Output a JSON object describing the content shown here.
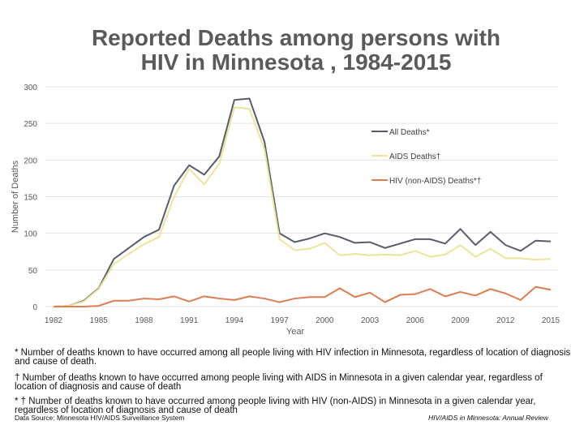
{
  "title_line1": "Reported Deaths among persons with",
  "title_line2": "HIV in Minnesota , 1984-2015",
  "chart_data": {
    "type": "line",
    "title": "Reported Deaths among persons with HIV in Minnesota , 1984-2015",
    "xlabel": "Year",
    "ylabel": "Number of Deaths",
    "ylim": [
      0,
      300
    ],
    "yticks": [
      0,
      50,
      100,
      150,
      200,
      250,
      300
    ],
    "xticks": [
      1982,
      1985,
      1988,
      1991,
      1994,
      1997,
      2000,
      2003,
      2006,
      2009,
      2012,
      2015
    ],
    "grid": "horizontal",
    "legend_position": "right",
    "x": [
      1982,
      1983,
      1984,
      1985,
      1986,
      1987,
      1988,
      1989,
      1990,
      1991,
      1992,
      1993,
      1994,
      1995,
      1996,
      1997,
      1998,
      1999,
      2000,
      2001,
      2002,
      2003,
      2004,
      2005,
      2006,
      2007,
      2008,
      2009,
      2010,
      2011,
      2012,
      2013,
      2014,
      2015
    ],
    "series": [
      {
        "name": "All Deaths*",
        "color": "#595d6b",
        "values": [
          0,
          1,
          8,
          25,
          65,
          80,
          95,
          105,
          165,
          193,
          180,
          205,
          282,
          284,
          225,
          100,
          88,
          93,
          100,
          95,
          87,
          88,
          80,
          86,
          92,
          92,
          86,
          106,
          84,
          102,
          84,
          76,
          90,
          89
        ]
      },
      {
        "name": "AIDS Deaths†",
        "color": "#ece49a",
        "values": [
          0,
          1,
          7,
          24,
          58,
          72,
          85,
          95,
          150,
          188,
          167,
          195,
          272,
          270,
          215,
          92,
          77,
          79,
          87,
          70,
          72,
          70,
          71,
          70,
          76,
          68,
          71,
          84,
          68,
          79,
          66,
          66,
          64,
          65
        ]
      },
      {
        "name": "HIV (non-AIDS) Deaths*†",
        "color": "#e07c52",
        "values": [
          0,
          0,
          0,
          1,
          8,
          8,
          11,
          10,
          14,
          7,
          14,
          11,
          9,
          14,
          11,
          6,
          11,
          13,
          13,
          25,
          13,
          19,
          6,
          16,
          17,
          24,
          14,
          20,
          15,
          24,
          18,
          9,
          27,
          23
        ]
      }
    ]
  },
  "footnotes": [
    "* Number of deaths known to have occurred among all people living with HIV infection in Minnesota, regardless of location of diagnosis and cause of death.",
    "† Number of deaths known to have occurred among people living with AIDS in Minnesota in a given calendar year, regardless of location of diagnosis and cause of death",
    "* † Number of deaths known to have occurred among people living with HIV (non-AIDS) in Minnesota in a given calendar year, regardless of location of diagnosis and cause of death"
  ],
  "data_source": "Data Source: Minnesota HIV/AIDS Surveillance System",
  "report_name": "HIV/AIDS in Minnesota: Annual Review"
}
